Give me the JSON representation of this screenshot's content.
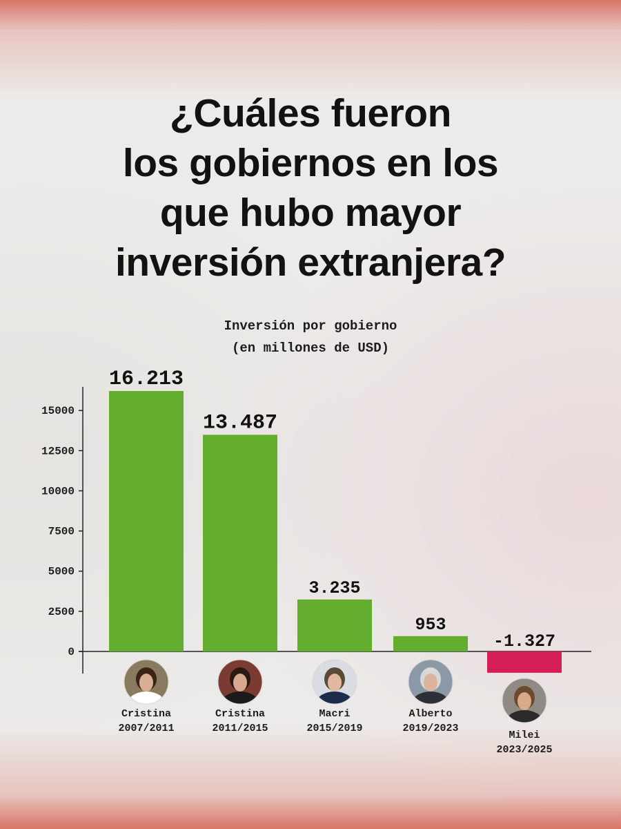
{
  "headline": [
    "¿Cuáles fueron",
    "los gobiernos en los",
    "que hubo mayor",
    "inversión extranjera?"
  ],
  "chart_data": {
    "type": "bar",
    "title": "Inversión por gobierno",
    "subtitle": "(en millones de USD)",
    "categories": [
      {
        "name": "Cristina",
        "period": "2007/2011"
      },
      {
        "name": "Cristina",
        "period": "2011/2015"
      },
      {
        "name": "Macri",
        "period": "2015/2019"
      },
      {
        "name": "Alberto",
        "period": "2019/2023"
      },
      {
        "name": "Milei",
        "period": "2023/2025"
      }
    ],
    "values": [
      16213,
      13487,
      3235,
      953,
      -1327
    ],
    "value_labels": [
      "16.213",
      "13.487",
      "3.235",
      "953",
      "-1.327"
    ],
    "y_ticks": [
      0,
      2500,
      5000,
      7500,
      10000,
      12500,
      15000
    ],
    "ylim": [
      -1327,
      16213
    ],
    "grid": false,
    "colors": {
      "positive": "#63ae2e",
      "negative": "#d41f56"
    },
    "avatars": [
      {
        "icon": "portrait-cristina-icon",
        "skin": "#d9ae92",
        "hair": "#3a2418",
        "cloth": "#ffffff",
        "bg": "#8a7a5f"
      },
      {
        "icon": "portrait-cristina-icon",
        "skin": "#d8a88e",
        "hair": "#2a1a12",
        "cloth": "#1a1a1a",
        "bg": "#7a3b32"
      },
      {
        "icon": "portrait-macri-icon",
        "skin": "#e2b9a0",
        "hair": "#5a4a3a",
        "cloth": "#1d2c4a",
        "bg": "#d9dde3"
      },
      {
        "icon": "portrait-alberto-icon",
        "skin": "#dcb39b",
        "hair": "#d8d8d8",
        "cloth": "#2a2f3a",
        "bg": "#8b98a6"
      },
      {
        "icon": "portrait-milei-icon",
        "skin": "#d9a98c",
        "hair": "#6b4a2e",
        "cloth": "#2b2b2b",
        "bg": "#8f8a84"
      }
    ]
  }
}
